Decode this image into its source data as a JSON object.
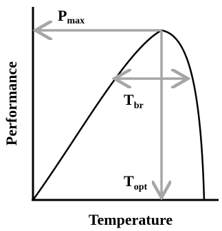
{
  "diagram": {
    "labels": {
      "pmax": {
        "main": "P",
        "sub": "max"
      },
      "tbr": {
        "main": "T",
        "sub": "br"
      },
      "topt": {
        "main": "T",
        "sub": "opt"
      }
    },
    "axes": {
      "xlabel": "Temperature",
      "ylabel": "Performance"
    },
    "colors": {
      "curve": "#000000",
      "arrows": "#a6a6a6",
      "axes": "#000000"
    }
  }
}
